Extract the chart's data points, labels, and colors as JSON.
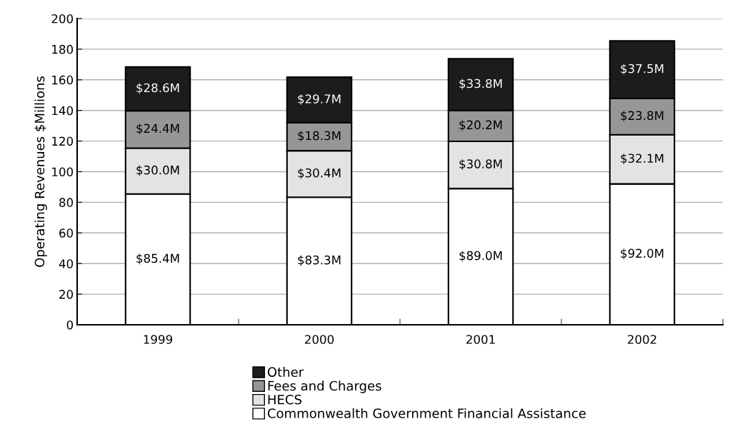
{
  "chart_data": {
    "type": "bar",
    "stacked": true,
    "ylabel": "Operating Revenues $Millions",
    "categories": [
      "1999",
      "2000",
      "2001",
      "2002"
    ],
    "series": [
      {
        "name": "Commonwealth Government Financial Assistance",
        "color": "#ffffff",
        "values": [
          85.4,
          83.3,
          89.0,
          92.0
        ],
        "value_labels": [
          "$85.4M",
          "$83.3M",
          "$89.0M",
          "$92.0M"
        ]
      },
      {
        "name": "HECS",
        "color": "#e3e3e3",
        "values": [
          30.0,
          30.4,
          30.8,
          32.1
        ],
        "value_labels": [
          "$30.0M",
          "$30.4M",
          "$30.8M",
          "$32.1M"
        ]
      },
      {
        "name": "Fees and Charges",
        "color": "#969696",
        "values": [
          24.4,
          18.3,
          20.2,
          23.8
        ],
        "value_labels": [
          "$24.4M",
          "$18.3M",
          "$20.2M",
          "$23.8M"
        ]
      },
      {
        "name": "Other",
        "color": "#1c1c1c",
        "values": [
          28.6,
          29.7,
          33.8,
          37.5
        ],
        "value_labels": [
          "$28.6M",
          "$29.7M",
          "$33.8M",
          "$37.5M"
        ]
      }
    ],
    "ylim": [
      0,
      200
    ],
    "yticks": [
      0,
      20,
      40,
      60,
      80,
      100,
      120,
      140,
      160,
      180,
      200
    ],
    "grid": "y",
    "legend": "bottom"
  }
}
